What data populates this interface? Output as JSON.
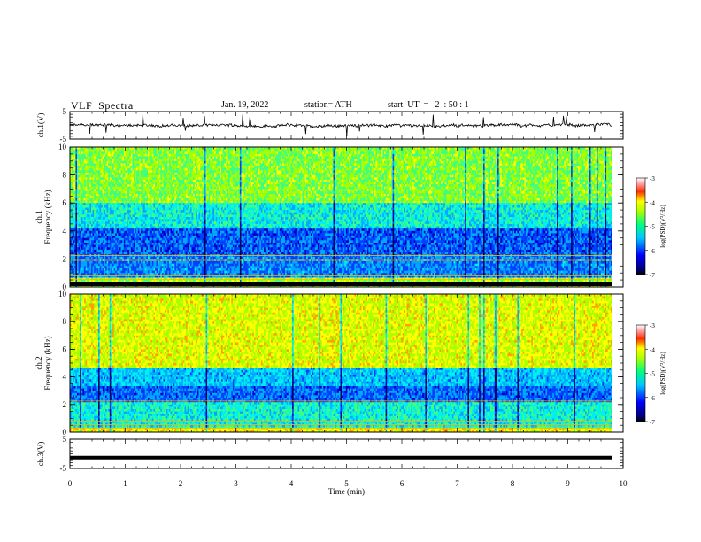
{
  "header": {
    "title": "VLF  Spectra",
    "date": "Jan. 19, 2022",
    "station": "station= ATH",
    "start": "start  UT  =   2  : 50 : 1"
  },
  "chart_data": [
    {
      "type": "line",
      "panel": "ch1-waveform",
      "ylabel": "ch.1(V)",
      "ylim": [
        -5,
        5
      ],
      "yticks": [
        "5",
        "-5"
      ],
      "xlim": [
        0,
        10
      ],
      "note_series": "noisy trace near 0 V, max time 9.8 min",
      "x_end": 9.8
    },
    {
      "type": "heatmap",
      "panel": "ch1-spectrogram",
      "ylabel": "ch.1\nFrequency (kHz)",
      "ylim": [
        0,
        10
      ],
      "yticks": [
        "0",
        "2",
        "4",
        "6",
        "8",
        "10"
      ],
      "xlim": [
        0,
        10
      ],
      "x_end": 9.8,
      "colorbar": {
        "label": "log(PSD)(V²/Hz)",
        "range": [
          -7,
          -3
        ],
        "ticks": [
          "-3",
          "-4",
          "-5",
          "-6",
          "-7"
        ]
      }
    },
    {
      "type": "heatmap",
      "panel": "ch2-spectrogram",
      "ylabel": "ch.2\nFrequency (kHz)",
      "ylim": [
        0,
        10
      ],
      "yticks": [
        "0",
        "2",
        "4",
        "6",
        "8",
        "10"
      ],
      "xlim": [
        0,
        10
      ],
      "x_end": 9.8,
      "colorbar": {
        "label": "log(PSD)(V²/Hz)",
        "range": [
          -7,
          -3
        ],
        "ticks": [
          "-3",
          "-4",
          "-5",
          "-6",
          "-7"
        ]
      }
    },
    {
      "type": "line",
      "panel": "ch3-waveform",
      "ylabel": "ch.3(V)",
      "ylim": [
        -5,
        5
      ],
      "yticks": [
        "5",
        "-5"
      ],
      "xlim": [
        0,
        10
      ],
      "x_end": 9.8,
      "level": -1.3
    }
  ],
  "xaxis": {
    "label": "Time  (min)",
    "ticks": [
      "0",
      "1",
      "2",
      "3",
      "4",
      "5",
      "6",
      "7",
      "8",
      "9",
      "10"
    ]
  },
  "colors": {
    "ink": "#000000",
    "jet": [
      "#000080",
      "#0000ff",
      "#00c0ff",
      "#00ff80",
      "#a0ff00",
      "#ffff00",
      "#ff8000",
      "#ff0000",
      "#ffffff"
    ]
  }
}
